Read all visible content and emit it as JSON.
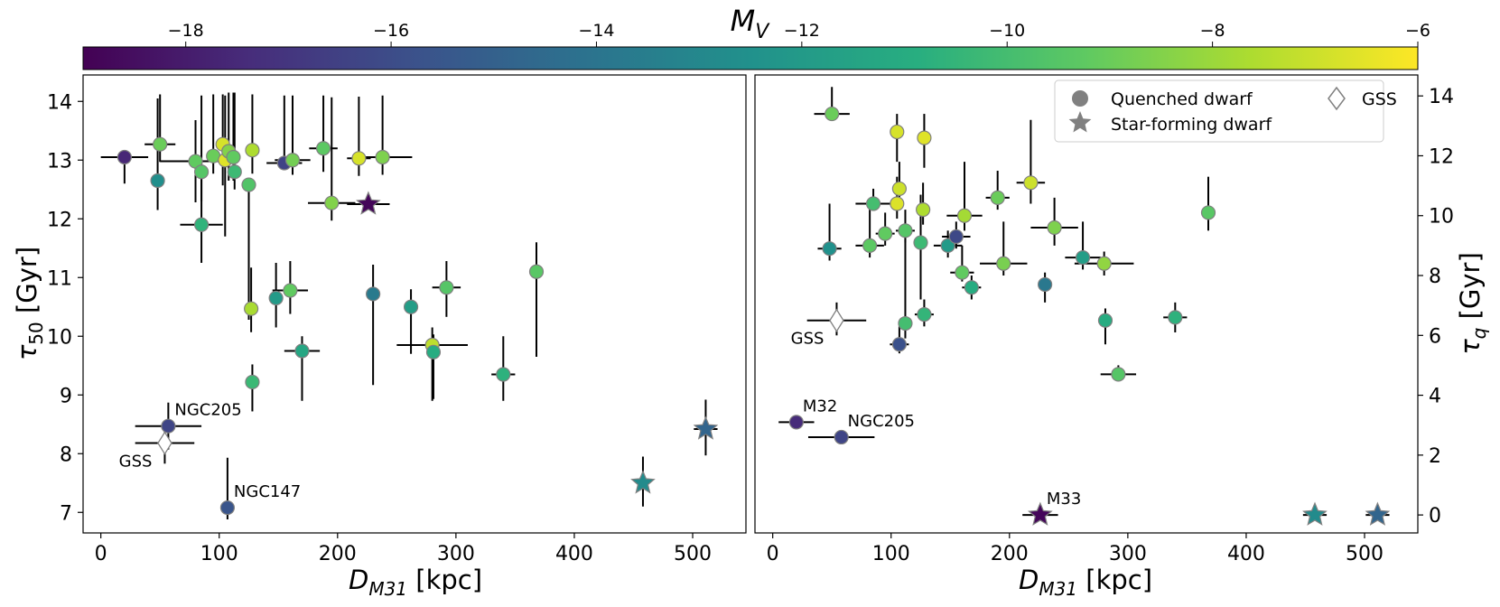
{
  "colorbar": {
    "label": "M_V",
    "min": -19.0,
    "max": -6,
    "ticks": [
      -18,
      -16,
      -14,
      -12,
      -10,
      -8,
      -6
    ],
    "tick_labels": [
      "−18",
      "−16",
      "−14",
      "−12",
      "−10",
      "−8",
      "−6"
    ],
    "colormap": "viridis"
  },
  "legend": {
    "placement": "upper right of right panel",
    "entries": [
      {
        "label": "Quenched dwarf",
        "marker": "circle",
        "color": "#808080"
      },
      {
        "label": "Star-forming dwarf",
        "marker": "star",
        "color": "#808080"
      },
      {
        "label": "GSS",
        "marker": "diamond-open",
        "color": "#808080"
      }
    ]
  },
  "chart_data": [
    {
      "type": "scatter",
      "xlabel": "D_M31 [kpc]",
      "ylabel": "τ_50 [Gyr]",
      "xlim": [
        -15,
        545
      ],
      "ylim": [
        6.65,
        14.45
      ],
      "xticks": [
        0,
        100,
        200,
        300,
        400,
        500
      ],
      "yticks": [
        7,
        8,
        9,
        10,
        11,
        12,
        13,
        14
      ],
      "grid": false,
      "points": [
        {
          "x": 20,
          "y": 13.05,
          "mv": -17.6,
          "marker": "circle",
          "xerr": 20,
          "yerr": [
            0.45,
            0.1
          ]
        },
        {
          "x": 50,
          "y": 13.27,
          "mv": -9.0,
          "marker": "circle",
          "xerr": 13,
          "yerr": [
            0.3,
            0.85
          ]
        },
        {
          "x": 48,
          "y": 12.65,
          "mv": -12.6,
          "marker": "circle",
          "xerr": 0,
          "yerr": [
            0.5,
            1.4
          ]
        },
        {
          "x": 80,
          "y": 12.98,
          "mv": -9.2,
          "marker": "circle",
          "xerr": 30,
          "yerr": [
            0.7,
            0.7
          ]
        },
        {
          "x": 85,
          "y": 12.8,
          "mv": -9.5,
          "marker": "circle",
          "xerr": 0,
          "yerr": [
            0.5,
            1.3
          ]
        },
        {
          "x": 85,
          "y": 11.9,
          "mv": -10.6,
          "marker": "circle",
          "xerr": 18,
          "yerr": [
            0.65,
            1.1
          ]
        },
        {
          "x": 95,
          "y": 13.07,
          "mv": -9.0,
          "marker": "circle",
          "xerr": 0,
          "yerr": [
            0.3,
            1.05
          ]
        },
        {
          "x": 103,
          "y": 13.27,
          "mv": -6.8,
          "marker": "circle",
          "xerr": 0,
          "yerr": [
            0.7,
            0.85
          ]
        },
        {
          "x": 105,
          "y": 13.0,
          "mv": -6.6,
          "marker": "circle",
          "xerr": 0,
          "yerr": [
            1.3,
            1.1
          ]
        },
        {
          "x": 108,
          "y": 13.15,
          "mv": -8.5,
          "marker": "circle",
          "xerr": 0,
          "yerr": [
            0.5,
            1.0
          ]
        },
        {
          "x": 112,
          "y": 13.05,
          "mv": -9.2,
          "marker": "circle",
          "xerr": 0,
          "yerr": [
            0.4,
            1.1
          ]
        },
        {
          "x": 113,
          "y": 12.8,
          "mv": -10.2,
          "marker": "circle",
          "xerr": 0,
          "yerr": [
            0.3,
            1.35
          ]
        },
        {
          "x": 125,
          "y": 12.58,
          "mv": -9.6,
          "marker": "circle",
          "xerr": 0,
          "yerr": [
            2.3,
            0.1
          ]
        },
        {
          "x": 128,
          "y": 13.17,
          "mv": -7.6,
          "marker": "circle",
          "xerr": 0,
          "yerr": [
            0.4,
            0.95
          ]
        },
        {
          "x": 155,
          "y": 12.95,
          "mv": -16.4,
          "marker": "circle",
          "xerr": 15,
          "yerr": [
            0.1,
            1.15
          ]
        },
        {
          "x": 162,
          "y": 13.0,
          "mv": -8.8,
          "marker": "circle",
          "xerr": 15,
          "yerr": [
            0.25,
            1.1
          ]
        },
        {
          "x": 188,
          "y": 13.2,
          "mv": -9.3,
          "marker": "circle",
          "xerr": 12,
          "yerr": [
            0.4,
            0.9
          ]
        },
        {
          "x": 195,
          "y": 12.27,
          "mv": -8.5,
          "marker": "circle",
          "xerr": 20,
          "yerr": [
            0.3,
            1.8
          ]
        },
        {
          "x": 218,
          "y": 13.03,
          "mv": -6.8,
          "marker": "circle",
          "xerr": 10,
          "yerr": [
            0.3,
            1.05
          ]
        },
        {
          "x": 238,
          "y": 13.05,
          "mv": -8.6,
          "marker": "circle",
          "xerr": 25,
          "yerr": [
            0.3,
            1.05
          ]
        },
        {
          "x": 127,
          "y": 10.47,
          "mv": -7.7,
          "marker": "circle",
          "xerr": 0,
          "yerr": [
            0.4,
            0.7
          ]
        },
        {
          "x": 148,
          "y": 10.65,
          "mv": -12.0,
          "marker": "circle",
          "xerr": 0,
          "yerr": [
            0.5,
            0.6
          ]
        },
        {
          "x": 160,
          "y": 10.78,
          "mv": -9.2,
          "marker": "circle",
          "xerr": 15,
          "yerr": [
            0.4,
            0.5
          ]
        },
        {
          "x": 170,
          "y": 9.75,
          "mv": -11.3,
          "marker": "circle",
          "xerr": 15,
          "yerr": [
            0.85,
            0.25
          ]
        },
        {
          "x": 128,
          "y": 9.22,
          "mv": -10.3,
          "marker": "circle",
          "xerr": 0,
          "yerr": [
            0.5,
            0.3
          ]
        },
        {
          "x": 230,
          "y": 10.72,
          "mv": -13.7,
          "marker": "circle",
          "xerr": 0,
          "yerr": [
            1.55,
            0.5
          ]
        },
        {
          "x": 262,
          "y": 10.5,
          "mv": -11.8,
          "marker": "circle",
          "xerr": 0,
          "yerr": [
            0.8,
            0.3
          ]
        },
        {
          "x": 280,
          "y": 9.85,
          "mv": -7.3,
          "marker": "circle",
          "xerr": 30,
          "yerr": [
            0.95,
            0.3
          ]
        },
        {
          "x": 281,
          "y": 9.73,
          "mv": -11.0,
          "marker": "circle",
          "xerr": 0,
          "yerr": [
            0.8,
            0.3
          ]
        },
        {
          "x": 292,
          "y": 10.83,
          "mv": -9.5,
          "marker": "circle",
          "xerr": 12,
          "yerr": [
            0.5,
            0.45
          ]
        },
        {
          "x": 340,
          "y": 9.35,
          "mv": -10.7,
          "marker": "circle",
          "xerr": 10,
          "yerr": [
            0.45,
            0.65
          ]
        },
        {
          "x": 368,
          "y": 11.1,
          "mv": -9.4,
          "marker": "circle",
          "xerr": 0,
          "yerr": [
            1.45,
            0.5
          ]
        },
        {
          "x": 57,
          "y": 8.47,
          "mv": -16.3,
          "marker": "circle",
          "xerr": 28,
          "yerr": [
            0.4,
            0.4
          ],
          "label": "NGC205"
        },
        {
          "x": 107,
          "y": 7.08,
          "mv": -15.6,
          "marker": "circle",
          "xerr": 0,
          "yerr": [
            0.2,
            0.85
          ],
          "label": "NGC147"
        },
        {
          "x": 54,
          "y": 8.18,
          "mv": null,
          "marker": "diamond-open",
          "xerr": 25,
          "yerr": [
            0.35,
            0.3
          ],
          "label": "GSS"
        },
        {
          "x": 226,
          "y": 12.25,
          "mv": -18.8,
          "marker": "star",
          "xerr": 18,
          "yerr": [
            0.1,
            0.15
          ]
        },
        {
          "x": 458,
          "y": 7.5,
          "mv": -12.8,
          "marker": "star",
          "xerr": 0,
          "yerr": [
            0.4,
            0.45
          ]
        },
        {
          "x": 511,
          "y": 8.42,
          "mv": -14.8,
          "marker": "star",
          "xerr": 10,
          "yerr": [
            0.45,
            0.5
          ]
        }
      ]
    },
    {
      "type": "scatter",
      "xlabel": "D_M31 [kpc]",
      "ylabel": "τ_q [Gyr]",
      "xlim": [
        -15,
        545
      ],
      "ylim": [
        -0.6,
        14.7
      ],
      "xticks": [
        0,
        100,
        200,
        300,
        400,
        500
      ],
      "yticks": [
        0,
        2,
        4,
        6,
        8,
        10,
        12,
        14
      ],
      "grid": false,
      "points": [
        {
          "x": 50,
          "y": 13.4,
          "mv": -9.0,
          "marker": "circle",
          "xerr": 15,
          "yerr": [
            0.1,
            0.9
          ]
        },
        {
          "x": 105,
          "y": 12.8,
          "mv": -6.8,
          "marker": "circle",
          "xerr": 0,
          "yerr": [
            1.0,
            0.6
          ]
        },
        {
          "x": 128,
          "y": 12.6,
          "mv": -6.6,
          "marker": "circle",
          "xerr": 0,
          "yerr": [
            1.0,
            0.8
          ]
        },
        {
          "x": 85,
          "y": 10.4,
          "mv": -10.0,
          "marker": "circle",
          "xerr": 15,
          "yerr": [
            0.2,
            0.5
          ]
        },
        {
          "x": 107,
          "y": 10.9,
          "mv": -7.0,
          "marker": "circle",
          "xerr": 0,
          "yerr": [
            0.5,
            0.9
          ]
        },
        {
          "x": 105,
          "y": 10.4,
          "mv": -6.7,
          "marker": "circle",
          "xerr": 0,
          "yerr": [
            0.5,
            0.9
          ]
        },
        {
          "x": 127,
          "y": 10.2,
          "mv": -7.6,
          "marker": "circle",
          "xerr": 0,
          "yerr": [
            0.5,
            0.9
          ]
        },
        {
          "x": 162,
          "y": 10.0,
          "mv": -7.8,
          "marker": "circle",
          "xerr": 15,
          "yerr": [
            0.5,
            1.8
          ]
        },
        {
          "x": 190,
          "y": 10.6,
          "mv": -9.0,
          "marker": "circle",
          "xerr": 10,
          "yerr": [
            0.4,
            0.9
          ]
        },
        {
          "x": 218,
          "y": 11.1,
          "mv": -7.0,
          "marker": "circle",
          "xerr": 12,
          "yerr": [
            0.7,
            2.1
          ]
        },
        {
          "x": 238,
          "y": 9.6,
          "mv": -8.6,
          "marker": "circle",
          "xerr": 20,
          "yerr": [
            0.6,
            1.0
          ]
        },
        {
          "x": 48,
          "y": 8.9,
          "mv": -12.5,
          "marker": "circle",
          "xerr": 10,
          "yerr": [
            0.4,
            1.5
          ]
        },
        {
          "x": 82,
          "y": 9.0,
          "mv": -9.3,
          "marker": "circle",
          "xerr": 12,
          "yerr": [
            0.4,
            1.5
          ]
        },
        {
          "x": 95,
          "y": 9.4,
          "mv": -9.2,
          "marker": "circle",
          "xerr": 8,
          "yerr": [
            0.4,
            0.7
          ]
        },
        {
          "x": 112,
          "y": 9.5,
          "mv": -9.5,
          "marker": "circle",
          "xerr": 8,
          "yerr": [
            0.4,
            0.7
          ]
        },
        {
          "x": 125,
          "y": 9.1,
          "mv": -10.2,
          "marker": "circle",
          "xerr": 0,
          "yerr": [
            1.9,
            1.6
          ]
        },
        {
          "x": 148,
          "y": 9.0,
          "mv": -12.0,
          "marker": "circle",
          "xerr": 12,
          "yerr": [
            0.4,
            0.5
          ]
        },
        {
          "x": 155,
          "y": 9.3,
          "mv": -16.2,
          "marker": "circle",
          "xerr": 12,
          "yerr": [
            0.4,
            0.5
          ]
        },
        {
          "x": 160,
          "y": 8.1,
          "mv": -9.2,
          "marker": "circle",
          "xerr": 10,
          "yerr": [
            0.3,
            0.9
          ]
        },
        {
          "x": 195,
          "y": 8.4,
          "mv": -8.7,
          "marker": "circle",
          "xerr": 20,
          "yerr": [
            0.4,
            1.4
          ]
        },
        {
          "x": 168,
          "y": 7.6,
          "mv": -11.0,
          "marker": "circle",
          "xerr": 8,
          "yerr": [
            0.4,
            0.4
          ]
        },
        {
          "x": 230,
          "y": 7.7,
          "mv": -13.8,
          "marker": "circle",
          "xerr": 0,
          "yerr": [
            0.6,
            0.4
          ]
        },
        {
          "x": 262,
          "y": 8.6,
          "mv": -11.8,
          "marker": "circle",
          "xerr": 15,
          "yerr": [
            0.4,
            1.2
          ]
        },
        {
          "x": 280,
          "y": 8.4,
          "mv": -8.2,
          "marker": "circle",
          "xerr": 25,
          "yerr": [
            0.4,
            0.4
          ]
        },
        {
          "x": 112,
          "y": 6.4,
          "mv": -10.0,
          "marker": "circle",
          "xerr": 0,
          "yerr": [
            0.5,
            3.2
          ]
        },
        {
          "x": 128,
          "y": 6.7,
          "mv": -10.5,
          "marker": "circle",
          "xerr": 8,
          "yerr": [
            0.4,
            0.5
          ]
        },
        {
          "x": 107,
          "y": 5.7,
          "mv": -15.8,
          "marker": "circle",
          "xerr": 8,
          "yerr": [
            0.3,
            0.6
          ]
        },
        {
          "x": 281,
          "y": 6.5,
          "mv": -11.0,
          "marker": "circle",
          "xerr": 0,
          "yerr": [
            0.8,
            0.4
          ]
        },
        {
          "x": 340,
          "y": 6.6,
          "mv": -10.7,
          "marker": "circle",
          "xerr": 10,
          "yerr": [
            0.5,
            0.5
          ]
        },
        {
          "x": 292,
          "y": 4.7,
          "mv": -9.5,
          "marker": "circle",
          "xerr": 15,
          "yerr": [
            0.2,
            0.3
          ]
        },
        {
          "x": 368,
          "y": 10.1,
          "mv": -9.4,
          "marker": "circle",
          "xerr": 0,
          "yerr": [
            0.6,
            1.2
          ]
        },
        {
          "x": 54,
          "y": 6.5,
          "mv": null,
          "marker": "diamond-open",
          "xerr": 25,
          "yerr": [
            0.5,
            0.6
          ],
          "label": "GSS"
        },
        {
          "x": 20,
          "y": 3.1,
          "mv": -17.4,
          "marker": "circle",
          "xerr": 15,
          "yerr": [
            0.2,
            0.2
          ],
          "label": "M32"
        },
        {
          "x": 58,
          "y": 2.6,
          "mv": -16.3,
          "marker": "circle",
          "xerr": 28,
          "yerr": [
            0.1,
            0.1
          ],
          "label": "NGC205"
        },
        {
          "x": 226,
          "y": 0.0,
          "mv": -18.8,
          "marker": "star",
          "xerr": 15,
          "yerr": [
            0.05,
            0.05
          ],
          "label": "M33"
        },
        {
          "x": 458,
          "y": 0.0,
          "mv": -12.8,
          "marker": "star",
          "xerr": 10,
          "yerr": [
            0.05,
            0.05
          ]
        },
        {
          "x": 511,
          "y": 0.0,
          "mv": -14.8,
          "marker": "star",
          "xerr": 10,
          "yerr": [
            0.05,
            0.05
          ]
        }
      ]
    }
  ]
}
